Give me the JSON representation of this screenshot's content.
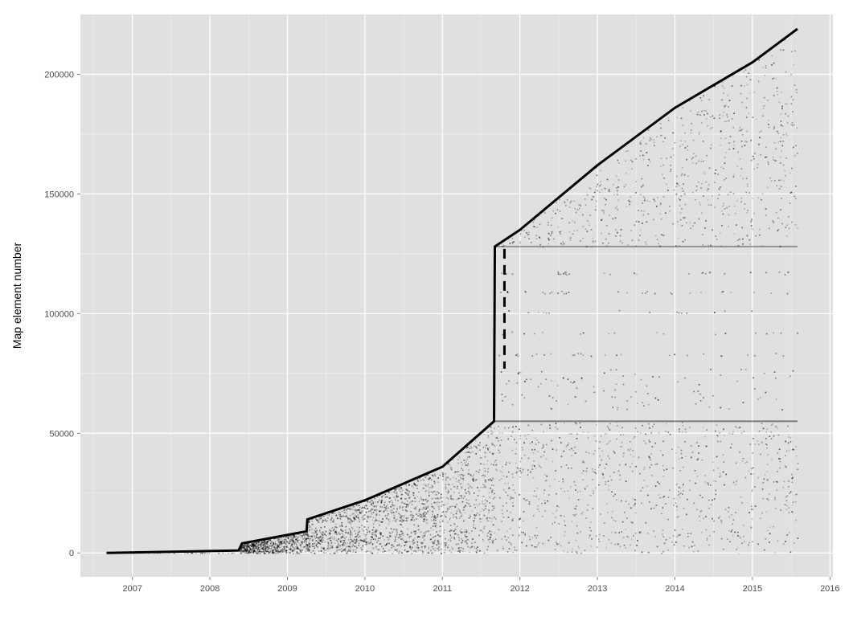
{
  "chart_data": {
    "type": "scatter",
    "title": "",
    "xlabel": "",
    "ylabel": "Map element number",
    "xlim": [
      "2006-05-01",
      "2016-01-15"
    ],
    "ylim": [
      -10000,
      225000
    ],
    "x_ticks": [
      "2007",
      "2008",
      "2009",
      "2010",
      "2011",
      "2012",
      "2013",
      "2014",
      "2015",
      "2016"
    ],
    "x_tick_values": [
      2007,
      2008,
      2009,
      2010,
      2011,
      2012,
      2013,
      2014,
      2015,
      2016
    ],
    "y_ticks": [
      "0",
      "50000",
      "100000",
      "150000",
      "200000"
    ],
    "y_tick_values": [
      0,
      50000,
      100000,
      150000,
      200000
    ],
    "grid": true,
    "legend": "none",
    "point_color": "#000000",
    "point_alpha": "low (dense overplotting)",
    "panel_background": "#e0e0e0",
    "grid_color": "#ffffff",
    "frontier": [
      {
        "date": "2006-09-01",
        "y": 0
      },
      {
        "date": "2008-05-15",
        "y": 1000
      },
      {
        "date": "2008-06-01",
        "y": 4000
      },
      {
        "date": "2009-04-01",
        "y": 9000
      },
      {
        "date": "2009-04-05",
        "y": 14000
      },
      {
        "date": "2010-01-01",
        "y": 22000
      },
      {
        "date": "2011-01-01",
        "y": 36000
      },
      {
        "date": "2011-09-01",
        "y": 55000
      },
      {
        "date": "2011-09-05",
        "y": 128000
      },
      {
        "date": "2012-01-01",
        "y": 135000
      },
      {
        "date": "2013-01-01",
        "y": 162000
      },
      {
        "date": "2014-01-01",
        "y": 186000
      },
      {
        "date": "2015-01-01",
        "y": 205000
      },
      {
        "date": "2015-08-01",
        "y": 219000
      }
    ],
    "sparse_band": [
      55000,
      128000
    ],
    "light_strip": [
      10000,
      13000
    ],
    "data_end": "2015-08-01"
  }
}
